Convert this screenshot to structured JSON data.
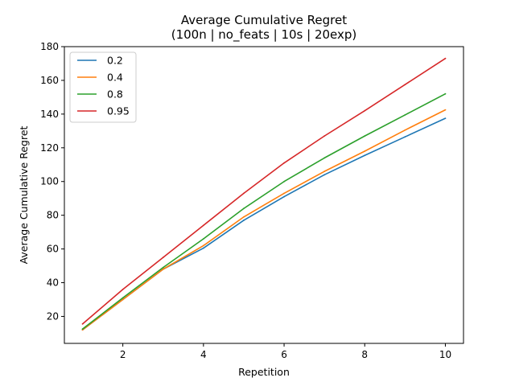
{
  "chart_data": {
    "type": "line",
    "title": "Average Cumulative Regret",
    "subtitle": "(100n | no_feats | 10s | 20exp)",
    "xlabel": "Repetition",
    "ylabel": "Average Cumulative Regret",
    "x": [
      1,
      2,
      3,
      4,
      5,
      6,
      7,
      8,
      9,
      10
    ],
    "xlim": [
      0.55,
      10.45
    ],
    "ylim": [
      4,
      180
    ],
    "xticks": [
      2,
      4,
      6,
      8,
      10
    ],
    "yticks": [
      20,
      40,
      60,
      80,
      100,
      120,
      140,
      160,
      180
    ],
    "grid": false,
    "legend_position": "top-left",
    "series": [
      {
        "name": "0.2",
        "color": "#1f77b4",
        "values": [
          12,
          30,
          48,
          60.5,
          77,
          91,
          104,
          115.5,
          126.5,
          137.5
        ]
      },
      {
        "name": "0.4",
        "color": "#ff7f0e",
        "values": [
          12,
          30,
          48,
          62,
          79,
          93,
          106,
          118,
          130.5,
          142.5
        ]
      },
      {
        "name": "0.8",
        "color": "#2ca02c",
        "values": [
          12.5,
          31,
          49,
          66,
          84,
          100,
          114,
          127,
          139.5,
          152
        ]
      },
      {
        "name": "0.95",
        "color": "#d62728",
        "values": [
          15.5,
          36,
          55,
          74,
          93,
          111,
          127,
          142,
          157.5,
          173
        ]
      }
    ]
  }
}
